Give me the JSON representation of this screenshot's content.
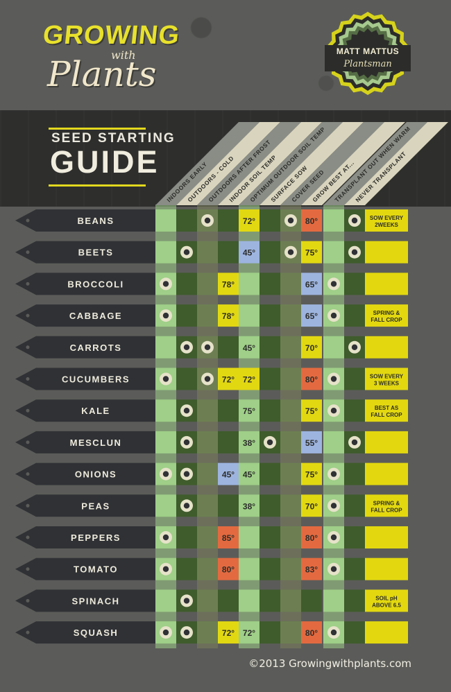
{
  "header": {
    "logo_line1": "GROWING",
    "logo_with": "with",
    "logo_line2": "Plants",
    "badge_name": "MATT MATTUS",
    "badge_title": "Plantsman"
  },
  "title": {
    "line1": "SEED STARTING",
    "line2": "GUIDE"
  },
  "columns": [
    "INDOORS EARLY",
    "OUTDOORS - COLD",
    "OUTDOORS AFTER FROST",
    "INDOOR SOIL TEMP",
    "OPTIMUM OUTDOOR SOIL TEMP",
    "SURFACE SOW",
    "COVER SEED",
    "GROW BEST AT...",
    "TRANSPLANT OUT WHEN WARM",
    "NEVER TRANSPLANT"
  ],
  "legend_colors": {
    "yellow": "#e3d80f",
    "blue": "#9cb3df",
    "red": "#e46b3f",
    "pale_green": "#a9d78f",
    "dark_green": "#3f5c2c",
    "marker_dark": "#2f3135",
    "background": "#5b5c59"
  },
  "rows": [
    {
      "name": "BEANS",
      "ie": false,
      "oc": false,
      "oaf": true,
      "ist": "",
      "ist_color": "",
      "oost": "72°",
      "oost_color": "yellow",
      "ss": false,
      "cs": true,
      "gba": "80°",
      "gba_color": "red",
      "tow": false,
      "nt": true,
      "note": "SOW EVERY 2WEEKS"
    },
    {
      "name": "BEETS",
      "ie": false,
      "oc": true,
      "oaf": false,
      "ist": "",
      "ist_color": "",
      "oost": "45°",
      "oost_color": "blue",
      "ss": false,
      "cs": true,
      "gba": "75°",
      "gba_color": "yellow",
      "tow": false,
      "nt": true,
      "note": ""
    },
    {
      "name": "BROCCOLI",
      "ie": true,
      "oc": false,
      "oaf": false,
      "ist": "78°",
      "ist_color": "yellow",
      "oost": "",
      "oost_color": "",
      "ss": false,
      "cs": false,
      "gba": "65°",
      "gba_color": "blue",
      "tow": true,
      "nt": false,
      "note": ""
    },
    {
      "name": "CABBAGE",
      "ie": true,
      "oc": false,
      "oaf": false,
      "ist": "78°",
      "ist_color": "yellow",
      "oost": "",
      "oost_color": "",
      "ss": false,
      "cs": false,
      "gba": "65°",
      "gba_color": "blue",
      "tow": true,
      "nt": false,
      "note": "SPRING & FALL CROP"
    },
    {
      "name": "CARROTS",
      "ie": false,
      "oc": true,
      "oaf": true,
      "ist": "",
      "ist_color": "",
      "oost": "45°",
      "oost_color": "",
      "ss": false,
      "cs": false,
      "gba": "70°",
      "gba_color": "yellow",
      "tow": false,
      "nt": true,
      "note": ""
    },
    {
      "name": "CUCUMBERS",
      "ie": true,
      "oc": false,
      "oaf": true,
      "ist": "72°",
      "ist_color": "yellow",
      "oost": "72°",
      "oost_color": "yellow",
      "ss": false,
      "cs": false,
      "gba": "80°",
      "gba_color": "red",
      "tow": true,
      "nt": false,
      "note": "SOW EVERY 3 WEEKS"
    },
    {
      "name": "KALE",
      "ie": false,
      "oc": true,
      "oaf": false,
      "ist": "",
      "ist_color": "",
      "oost": "75°",
      "oost_color": "",
      "ss": false,
      "cs": false,
      "gba": "75°",
      "gba_color": "yellow",
      "tow": true,
      "nt": false,
      "note": "BEST AS FALL CROP"
    },
    {
      "name": "MESCLUN",
      "ie": false,
      "oc": true,
      "oaf": false,
      "ist": "",
      "ist_color": "",
      "oost": "38°",
      "oost_color": "",
      "ss": true,
      "cs": false,
      "gba": "55°",
      "gba_color": "blue",
      "tow": false,
      "nt": true,
      "note": ""
    },
    {
      "name": "ONIONS",
      "ie": true,
      "oc": true,
      "oaf": false,
      "ist": "45°",
      "ist_color": "blue",
      "oost": "45°",
      "oost_color": "",
      "ss": false,
      "cs": false,
      "gba": "75°",
      "gba_color": "yellow",
      "tow": true,
      "nt": false,
      "note": ""
    },
    {
      "name": "PEAS",
      "ie": false,
      "oc": true,
      "oaf": false,
      "ist": "",
      "ist_color": "",
      "oost": "38°",
      "oost_color": "",
      "ss": false,
      "cs": false,
      "gba": "70°",
      "gba_color": "yellow",
      "tow": true,
      "nt": false,
      "note": "SPRING & FALL CROP"
    },
    {
      "name": "PEPPERS",
      "ie": true,
      "oc": false,
      "oaf": false,
      "ist": "85°",
      "ist_color": "red",
      "oost": "",
      "oost_color": "",
      "ss": false,
      "cs": false,
      "gba": "80°",
      "gba_color": "red",
      "tow": true,
      "nt": false,
      "note": ""
    },
    {
      "name": "TOMATO",
      "ie": true,
      "oc": false,
      "oaf": false,
      "ist": "80°",
      "ist_color": "red",
      "oost": "",
      "oost_color": "",
      "ss": false,
      "cs": false,
      "gba": "83°",
      "gba_color": "red",
      "tow": true,
      "nt": false,
      "note": ""
    },
    {
      "name": "SPINACH",
      "ie": false,
      "oc": true,
      "oaf": false,
      "ist": "",
      "ist_color": "",
      "oost": "",
      "oost_color": "",
      "ss": false,
      "cs": false,
      "gba": "",
      "gba_color": "",
      "tow": false,
      "nt": false,
      "note": "SOIL pH ABOVE 6.5"
    },
    {
      "name": "SQUASH",
      "ie": true,
      "oc": true,
      "oaf": false,
      "ist": "72°",
      "ist_color": "yellow",
      "oost": "72°",
      "oost_color": "",
      "ss": false,
      "cs": false,
      "gba": "80°",
      "gba_color": "red",
      "tow": true,
      "nt": false,
      "note": ""
    }
  ],
  "footer": {
    "copyright": "©2013 Growingwithplants.com"
  }
}
